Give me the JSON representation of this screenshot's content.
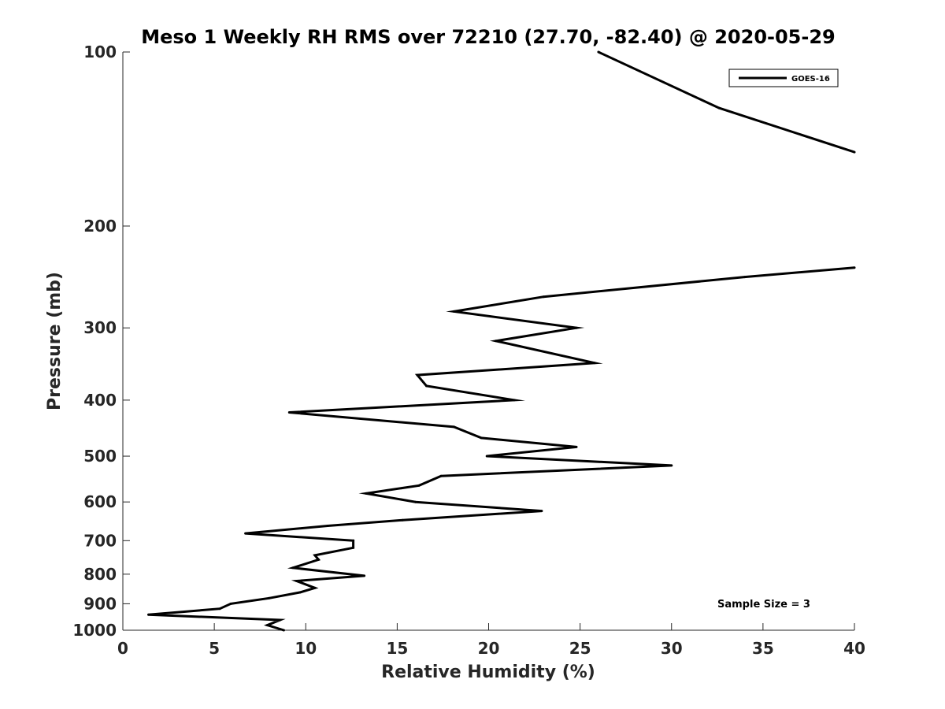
{
  "chart_data": {
    "type": "line",
    "title": "Meso 1 Weekly RH RMS over 72210 (27.70, -82.40) @ 2020-05-29",
    "xlabel": "Relative Humidity (%)",
    "ylabel": "Pressure (mb)",
    "xlim": [
      0,
      40
    ],
    "ylim": [
      100,
      1000
    ],
    "y_scale": "log",
    "y_reversed": true,
    "grid": false,
    "x_ticks": [
      0,
      5,
      10,
      15,
      20,
      25,
      30,
      35,
      40
    ],
    "y_ticks": [
      100,
      200,
      300,
      400,
      500,
      600,
      700,
      800,
      900,
      1000
    ],
    "x_tick_labels": [
      "0",
      "5",
      "10",
      "15",
      "20",
      "25",
      "30",
      "35",
      "40"
    ],
    "y_tick_labels": [
      "100",
      "200",
      "300",
      "400",
      "500",
      "600",
      "700",
      "800",
      "900",
      "1000"
    ],
    "legend": {
      "placement": "top-right",
      "entries": [
        "GOES-16"
      ]
    },
    "annotation": "Sample Size = 3",
    "series": [
      {
        "name": "GOES-16",
        "color": "#000000",
        "segments": [
          [
            [
              26.0,
              100
            ],
            [
              32.6,
              125
            ],
            [
              40.0,
              149
            ]
          ],
          [
            [
              40.0,
              236
            ],
            [
              34.0,
              245
            ],
            [
              23.0,
              265
            ],
            [
              18.1,
              281
            ],
            [
              24.8,
              300
            ],
            [
              20.4,
              316
            ],
            [
              25.8,
              345
            ],
            [
              16.1,
              362
            ],
            [
              16.6,
              378
            ],
            [
              21.4,
              400
            ],
            [
              9.1,
              420
            ],
            [
              18.1,
              445
            ],
            [
              19.6,
              465
            ],
            [
              24.8,
              482
            ],
            [
              19.9,
              500
            ],
            [
              30.0,
              519
            ],
            [
              17.4,
              541
            ],
            [
              16.2,
              562
            ],
            [
              13.3,
              580
            ],
            [
              16.0,
              600
            ],
            [
              22.9,
              622
            ],
            [
              15.3,
              645
            ],
            [
              11.2,
              660
            ],
            [
              6.7,
              680
            ],
            [
              12.6,
              700
            ],
            [
              12.6,
              720
            ],
            [
              10.5,
              742
            ],
            [
              10.7,
              755
            ],
            [
              9.3,
              780
            ],
            [
              13.2,
              805
            ],
            [
              9.5,
              822
            ],
            [
              10.5,
              845
            ],
            [
              9.7,
              860
            ],
            [
              8.0,
              880
            ],
            [
              5.9,
              900
            ],
            [
              5.3,
              918
            ],
            [
              1.4,
              940
            ],
            [
              8.6,
              960
            ],
            [
              7.9,
              980
            ],
            [
              8.8,
              1000
            ]
          ]
        ]
      }
    ]
  }
}
